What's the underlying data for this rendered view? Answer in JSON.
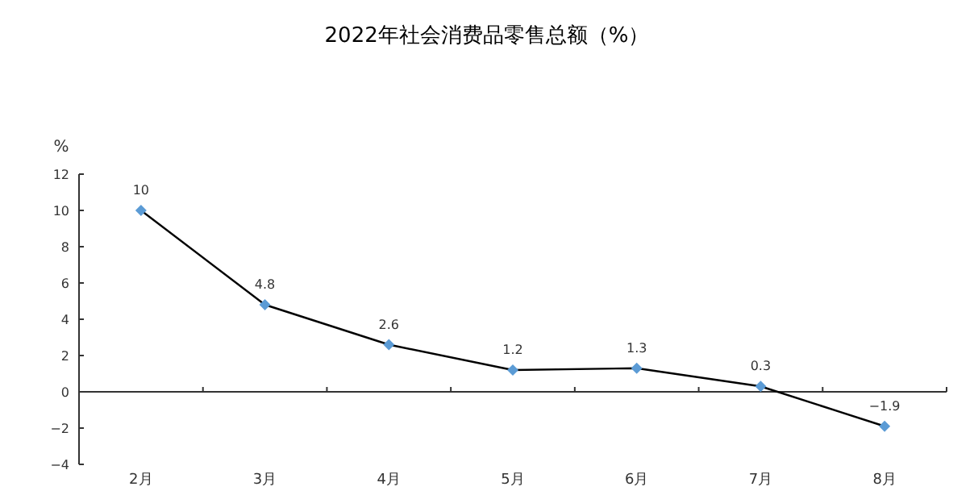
{
  "chart_data": {
    "type": "line",
    "title": "2022年社会消费品零售总额（%）",
    "ylabel": "%",
    "categories": [
      "2月",
      "3月",
      "4月",
      "5月",
      "6月",
      "7月",
      "8月"
    ],
    "series": [
      {
        "color": "#5b9bd5",
        "values": [
          10,
          4.8,
          2.6,
          1.2,
          1.3,
          0.3,
          -1.9
        ]
      }
    ],
    "ylim": [
      -4,
      12
    ],
    "yticks": [
      -4,
      -2,
      0,
      2,
      4,
      6,
      8,
      10,
      12
    ],
    "data_labels": true,
    "marker": "diamond",
    "line_style": "solid"
  }
}
